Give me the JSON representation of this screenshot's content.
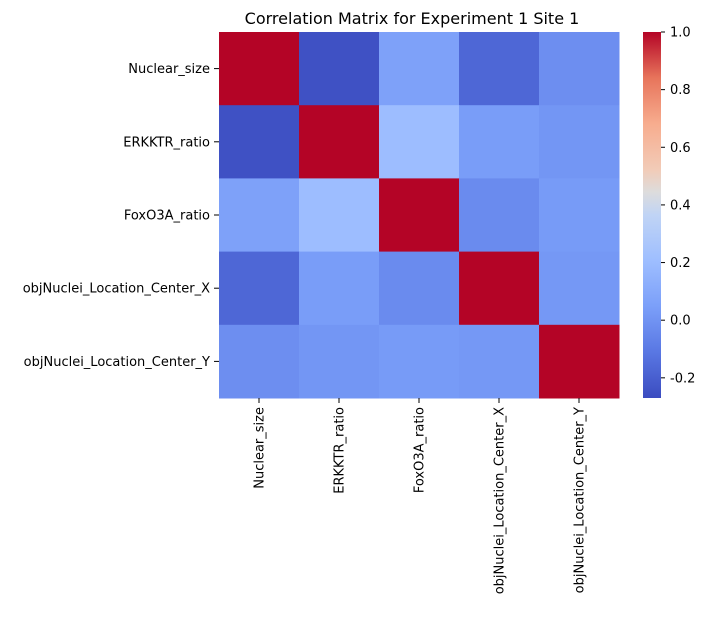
{
  "chart_data": {
    "type": "heatmap",
    "title": "Correlation Matrix for Experiment 1 Site 1",
    "xlabel": "",
    "ylabel": "",
    "variables": [
      "Nuclear_size",
      "ERKKTR_ratio",
      "FoxO3A_ratio",
      "objNuclei_Location_Center_X",
      "objNuclei_Location_Center_Y"
    ],
    "matrix": [
      [
        1.0,
        -0.25,
        0.06,
        -0.17,
        -0.02
      ],
      [
        -0.25,
        1.0,
        0.2,
        0.04,
        0.01
      ],
      [
        0.06,
        0.2,
        1.0,
        -0.03,
        0.03
      ],
      [
        -0.17,
        0.04,
        -0.03,
        1.0,
        0.02
      ],
      [
        -0.02,
        0.01,
        0.03,
        0.02,
        1.0
      ]
    ],
    "colormap": "coolwarm",
    "vmin": -0.27,
    "vmax": 1.0,
    "colorbar_ticks": [
      "-0.2",
      "0.0",
      "0.2",
      "0.4",
      "0.6",
      "0.8",
      "1.0"
    ],
    "grid": false
  }
}
